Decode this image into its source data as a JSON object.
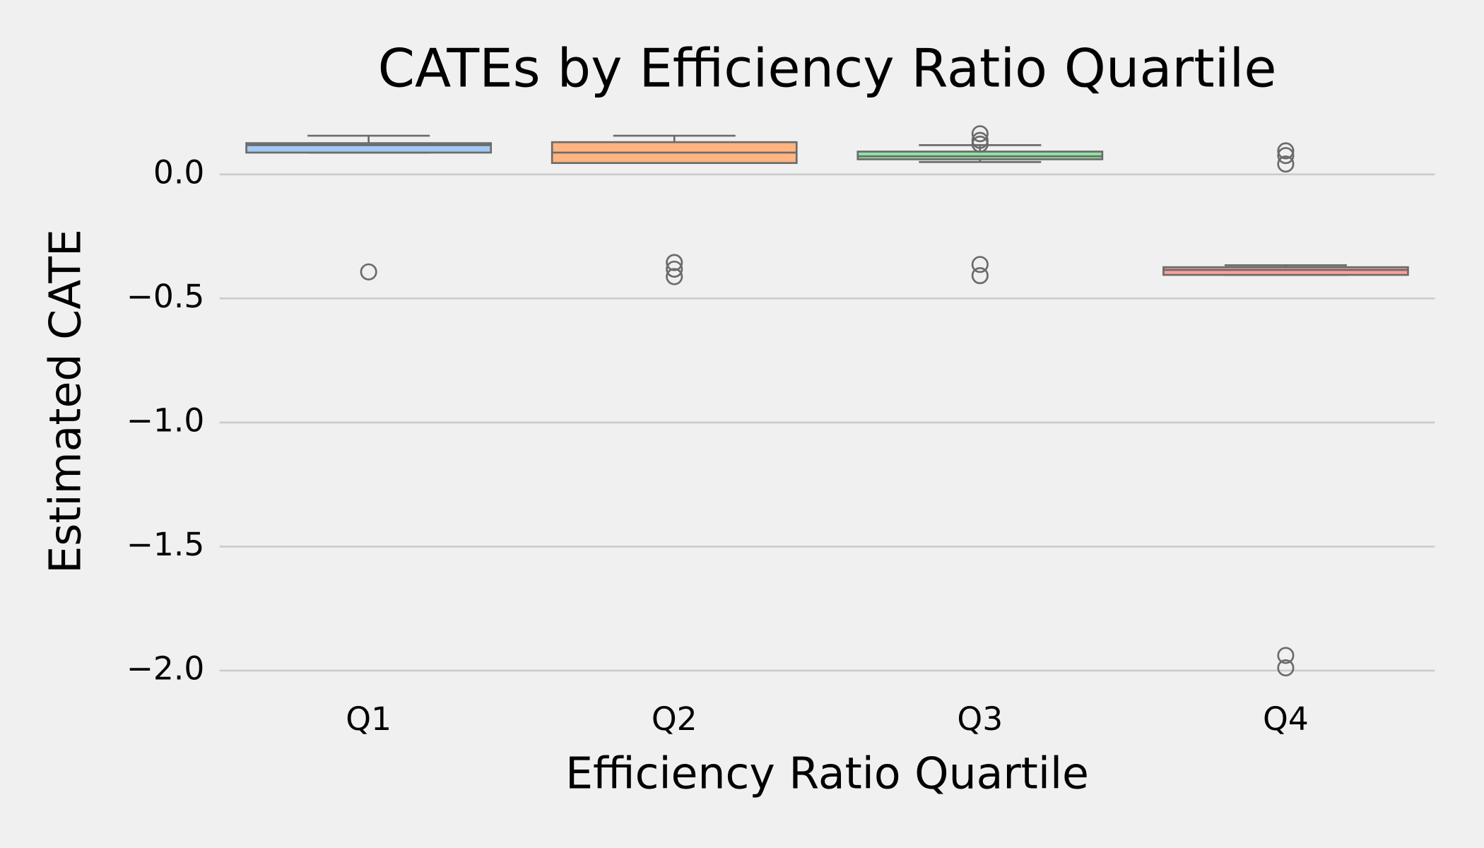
{
  "chart_data": {
    "type": "box",
    "title": "CATEs by Efficiency Ratio Quartile",
    "x_label": "Efficiency Ratio Quartile",
    "y_label": "Estimated CATE",
    "categories": [
      "Q1",
      "Q2",
      "Q3",
      "Q4"
    ],
    "colors": [
      "#a1c9f4",
      "#ffb482",
      "#8de5a1",
      "#ff9f9b"
    ],
    "boxes": [
      {
        "low": 0.088,
        "q1": 0.088,
        "median": 0.118,
        "q3": 0.126,
        "high": 0.156,
        "outliers": [
          -0.393
        ]
      },
      {
        "low": 0.046,
        "q1": 0.046,
        "median": 0.088,
        "q3": 0.13,
        "high": 0.156,
        "outliers": [
          -0.355,
          -0.382,
          -0.412
        ]
      },
      {
        "low": 0.05,
        "q1": 0.061,
        "median": 0.073,
        "q3": 0.092,
        "high": 0.118,
        "outliers": [
          0.164,
          0.137,
          0.122,
          -0.363,
          -0.408
        ]
      },
      {
        "low": -0.405,
        "q1": -0.405,
        "median": -0.385,
        "q3": -0.374,
        "high": -0.366,
        "outliers": [
          0.095,
          0.076,
          0.042,
          -1.939,
          -1.989
        ]
      }
    ],
    "ylim": [
      -2.12,
      0.23
    ],
    "yticks": [
      {
        "value": 0.0,
        "label": "0.0"
      },
      {
        "value": -0.5,
        "label": "−0.5"
      },
      {
        "value": -1.0,
        "label": "−1.0"
      },
      {
        "value": -1.5,
        "label": "−1.5"
      },
      {
        "value": -2.0,
        "label": "−2.0"
      }
    ],
    "grid": true
  }
}
